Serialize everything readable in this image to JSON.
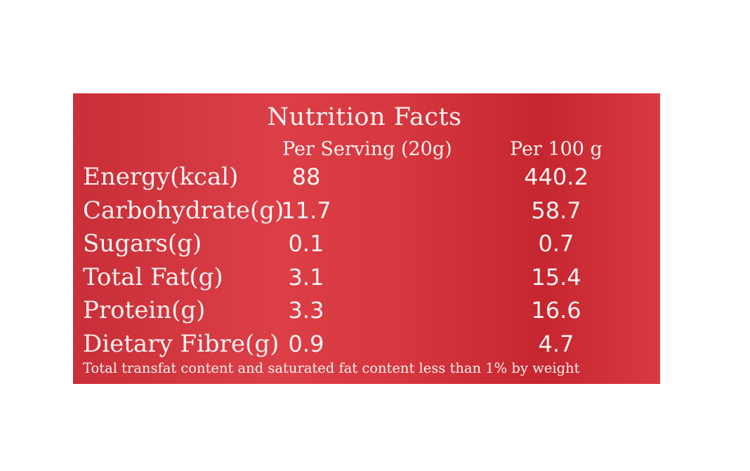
{
  "label": {
    "title": "Nutrition Facts",
    "columns": {
      "per_serving": "Per Serving (20g)",
      "per_100g": "Per 100 g"
    },
    "rows": [
      {
        "name": "Energy(kcal)",
        "per_serving": "88",
        "per_100g": "440.2"
      },
      {
        "name": "Carbohydrate(g)",
        "per_serving": "11.7",
        "per_100g": "58.7"
      },
      {
        "name": "Sugars(g)",
        "per_serving": "0.1",
        "per_100g": "0.7"
      },
      {
        "name": "Total Fat(g)",
        "per_serving": "3.1",
        "per_100g": "15.4"
      },
      {
        "name": "Protein(g)",
        "per_serving": "3.3",
        "per_100g": "16.6"
      },
      {
        "name": "Dietary Fibre(g)",
        "per_serving": "0.9",
        "per_100g": "4.7"
      }
    ],
    "footnote": "Total transfat content and saturated fat content less than 1% by weight",
    "colors": {
      "background": "#d7373f",
      "text": "#fbf3f3"
    }
  }
}
